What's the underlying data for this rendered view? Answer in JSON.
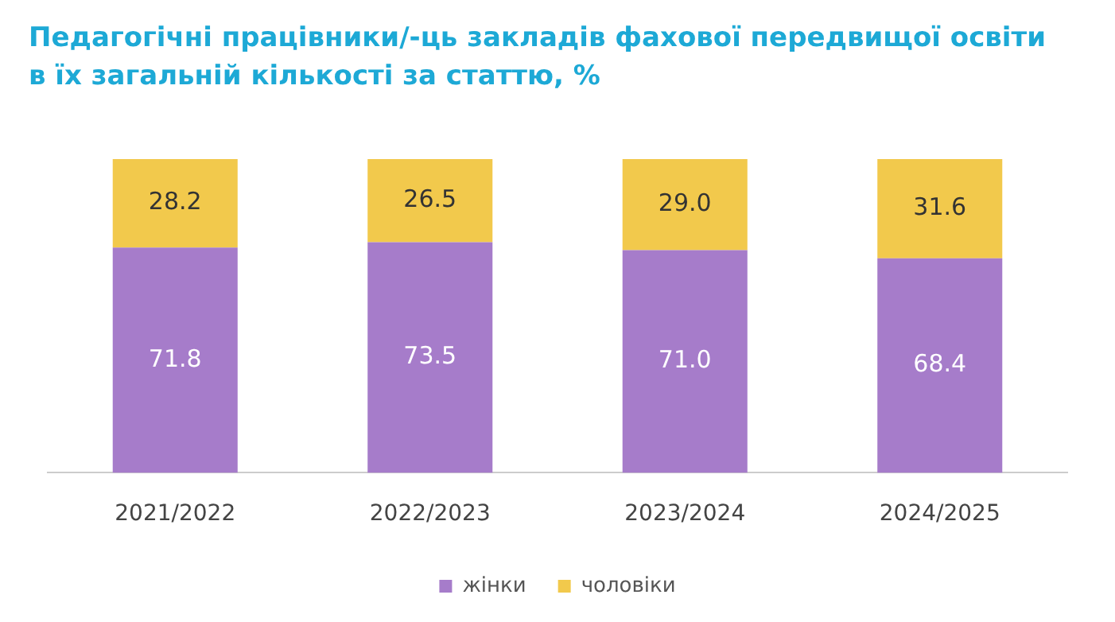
{
  "chart_data": {
    "type": "bar",
    "title": "Педагогічні працівники/-ць закладів фахової передвищої освіти в їх загальній кількості за статтю, %",
    "categories": [
      "2021/2022",
      "2022/2023",
      "2023/2024",
      "2024/2025"
    ],
    "stacked": true,
    "legend": "bottom",
    "series": [
      {
        "name": "жінки",
        "color": "#a67cca",
        "values": [
          71.8,
          73.5,
          71.0,
          68.4
        ],
        "value_labels": [
          "71.8",
          "73.5",
          "71.0",
          "68.4"
        ]
      },
      {
        "name": "чоловіки",
        "color": "#f2c94c",
        "values": [
          28.2,
          26.5,
          29.0,
          31.6
        ],
        "value_labels": [
          "28.2",
          "26.5",
          "29.0",
          "31.6"
        ]
      }
    ]
  }
}
